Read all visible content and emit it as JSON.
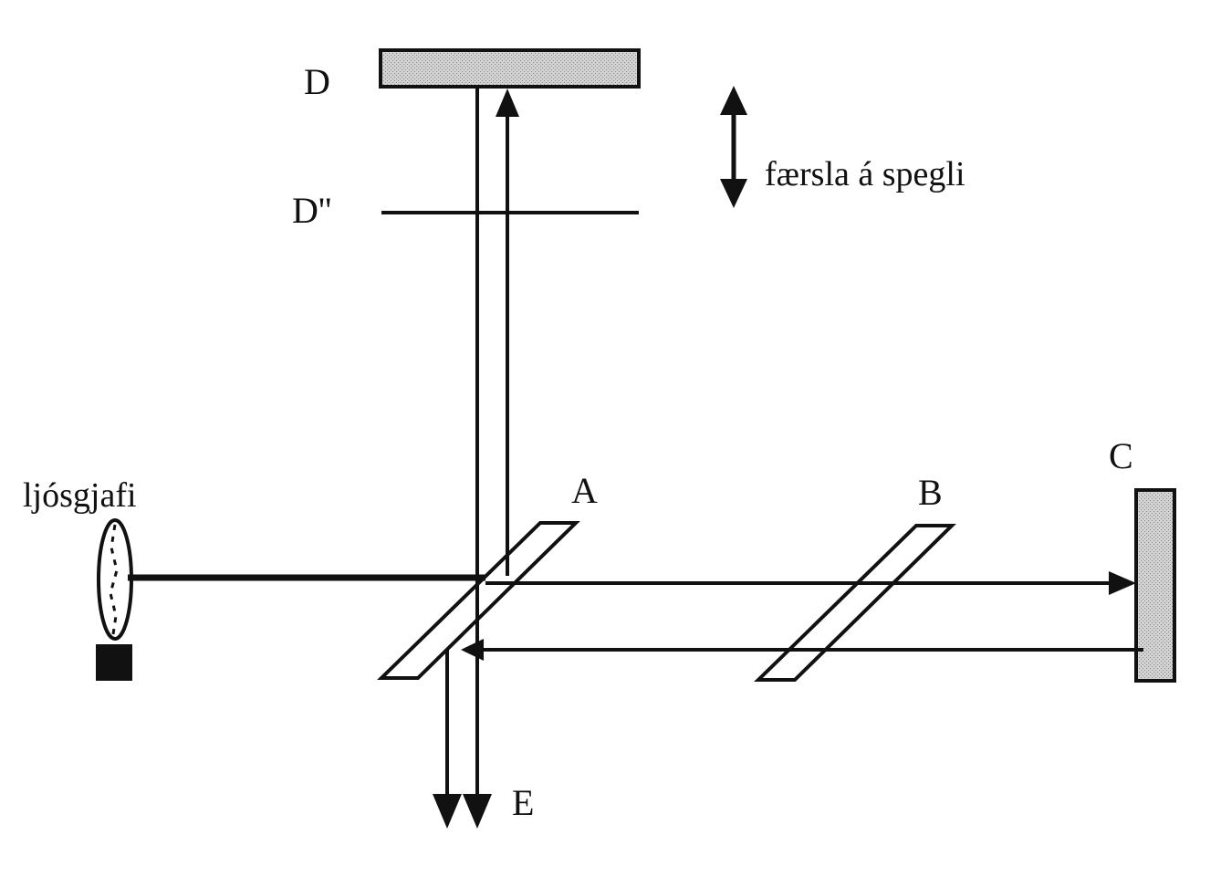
{
  "labels": {
    "D": "D",
    "D_prime": "D''",
    "movement": "færsla á spegli",
    "A": "A",
    "B": "B",
    "C": "C",
    "E": "E",
    "source": "ljósgjafi"
  },
  "colors": {
    "ink": "#111111",
    "mirror_fill": "#c8c8c8",
    "background": "#ffffff"
  }
}
